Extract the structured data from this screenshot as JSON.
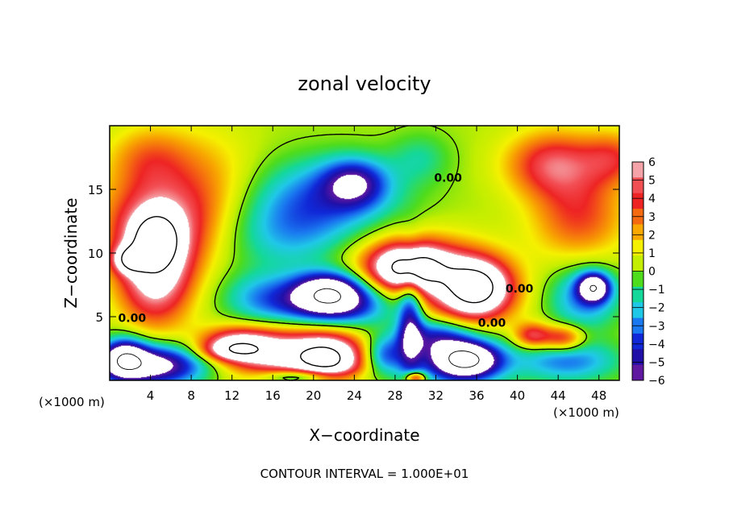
{
  "chart_data": {
    "type": "heatmap",
    "title": "zonal velocity",
    "xlabel": "X−coordinate",
    "ylabel": "Z−coordinate",
    "x_units": "(×1000 m)",
    "y_units": "(×1000 m)",
    "xlim": [
      0,
      50
    ],
    "ylim": [
      0,
      20
    ],
    "x_ticks": [
      4,
      8,
      12,
      16,
      20,
      24,
      28,
      32,
      36,
      40,
      44,
      48
    ],
    "y_ticks": [
      5,
      10,
      15
    ],
    "colorbar": {
      "min": -6,
      "max": 6,
      "ticks": [
        6,
        5,
        4,
        3,
        2,
        1,
        0,
        -1,
        -2,
        -3,
        -4,
        -5,
        -6
      ],
      "colors": [
        "#f4a4a8",
        "#f24f55",
        "#ee2424",
        "#f56a10",
        "#f8a800",
        "#f5f000",
        "#c4ee00",
        "#4edc1c",
        "#14d89a",
        "#20c8e8",
        "#1a78f0",
        "#1028d8",
        "#2010a8",
        "#6018a0"
      ],
      "out_of_range_color": "#ffffff"
    },
    "contour_labels": [
      {
        "text": "0.00",
        "x": 2.2,
        "z": 4.6
      },
      {
        "text": "0.00",
        "x": 37.5,
        "z": 4.2
      },
      {
        "text": "0.00",
        "x": 40.2,
        "z": 6.9
      },
      {
        "text": "0.00",
        "x": 33.2,
        "z": 15.6
      }
    ],
    "blobs": [
      {
        "x": 5.0,
        "z": 12.5,
        "rx": 5.5,
        "rz": 3.8,
        "v": 5
      },
      {
        "x": 4.5,
        "z": 8.5,
        "rx": 3.5,
        "rz": 4.0,
        "v": 7
      },
      {
        "x": 4.5,
        "z": 11.0,
        "rx": 2.0,
        "rz": 1.8,
        "v": 7
      },
      {
        "x": 2.0,
        "z": 9.5,
        "rx": 1.5,
        "rz": 1.0,
        "v": 7
      },
      {
        "x": 4.0,
        "z": 1.2,
        "rx": 5.5,
        "rz": 1.6,
        "v": -8
      },
      {
        "x": 1.5,
        "z": 1.8,
        "rx": 2.0,
        "rz": 1.5,
        "v": -6
      },
      {
        "x": 17.5,
        "z": 2.0,
        "rx": 6.5,
        "rz": 2.0,
        "v": 7
      },
      {
        "x": 12.5,
        "z": 3.0,
        "rx": 3.5,
        "rz": 1.2,
        "v": 4.5
      },
      {
        "x": 21.5,
        "z": 1.6,
        "rx": 3.0,
        "rz": 1.8,
        "v": 7
      },
      {
        "x": 19.0,
        "z": 0.3,
        "rx": 4.0,
        "rz": 0.6,
        "v": -5
      },
      {
        "x": 21.5,
        "z": 14.5,
        "rx": 7.0,
        "rz": 3.0,
        "v": -3.5
      },
      {
        "x": 17.5,
        "z": 11.5,
        "rx": 6.0,
        "rz": 3.0,
        "v": -2.5
      },
      {
        "x": 24.0,
        "z": 15.5,
        "rx": 3.0,
        "rz": 1.8,
        "v": -4.5
      },
      {
        "x": 21.5,
        "z": 7.0,
        "rx": 3.5,
        "rz": 1.5,
        "v": -8
      },
      {
        "x": 22.0,
        "z": 5.8,
        "rx": 5.5,
        "rz": 1.6,
        "v": -5
      },
      {
        "x": 15.0,
        "z": 6.5,
        "rx": 4.0,
        "rz": 2.0,
        "v": -2.8
      },
      {
        "x": 29.5,
        "z": 8.8,
        "rx": 3.5,
        "rz": 1.6,
        "v": 8
      },
      {
        "x": 29.5,
        "z": 9.2,
        "rx": 5.5,
        "rz": 2.4,
        "v": 4.2
      },
      {
        "x": 36.0,
        "z": 7.3,
        "rx": 3.0,
        "rz": 2.0,
        "v": 8
      },
      {
        "x": 35.0,
        "z": 7.0,
        "rx": 5.0,
        "rz": 3.0,
        "v": 4.5
      },
      {
        "x": 29.5,
        "z": 4.8,
        "rx": 1.2,
        "rz": 4.5,
        "v": -5
      },
      {
        "x": 32.0,
        "z": 3.5,
        "rx": 3.5,
        "rz": 1.4,
        "v": -4
      },
      {
        "x": 35.0,
        "z": 1.6,
        "rx": 3.0,
        "rz": 1.3,
        "v": -8
      },
      {
        "x": 34.0,
        "z": 1.6,
        "rx": 5.0,
        "rz": 2.2,
        "v": -4.2
      },
      {
        "x": 45.0,
        "z": 1.5,
        "rx": 5.0,
        "rz": 1.6,
        "v": -3.5
      },
      {
        "x": 47.5,
        "z": 7.3,
        "rx": 1.5,
        "rz": 1.1,
        "v": -8
      },
      {
        "x": 46.5,
        "z": 6.5,
        "rx": 3.5,
        "rz": 2.5,
        "v": -3.5
      },
      {
        "x": 41.5,
        "z": 3.5,
        "rx": 1.8,
        "rz": 1.0,
        "v": 4.5
      },
      {
        "x": 44.5,
        "z": 3.3,
        "rx": 2.0,
        "rz": 1.0,
        "v": 4.5
      },
      {
        "x": 43.5,
        "z": 17.0,
        "rx": 4.5,
        "rz": 2.5,
        "v": 4.5
      },
      {
        "x": 46.0,
        "z": 13.0,
        "rx": 4.5,
        "rz": 3.5,
        "v": 3.5
      },
      {
        "x": 49.5,
        "z": 17.5,
        "rx": 3.0,
        "rz": 2.0,
        "v": 3
      },
      {
        "x": 30.5,
        "z": 17.5,
        "rx": 3.0,
        "rz": 2.0,
        "v": -1.5
      },
      {
        "x": 10.0,
        "z": 16.0,
        "rx": 4.5,
        "rz": 4.0,
        "v": 1.5
      },
      {
        "x": 4.0,
        "z": 17.5,
        "rx": 4.0,
        "rz": 2.5,
        "v": 2.5
      },
      {
        "x": 12.0,
        "z": 2.3,
        "rx": 3.0,
        "rz": 0.8,
        "v": 4
      },
      {
        "x": 27.0,
        "z": 2.0,
        "rx": 2.0,
        "rz": 1.5,
        "v": -4
      },
      {
        "x": 30.0,
        "z": 0.2,
        "rx": 1.0,
        "rz": 0.5,
        "v": 6
      }
    ],
    "base_value": 0.3
  },
  "annotations": {
    "contour_interval": "CONTOUR INTERVAL = 1.000E+01"
  }
}
